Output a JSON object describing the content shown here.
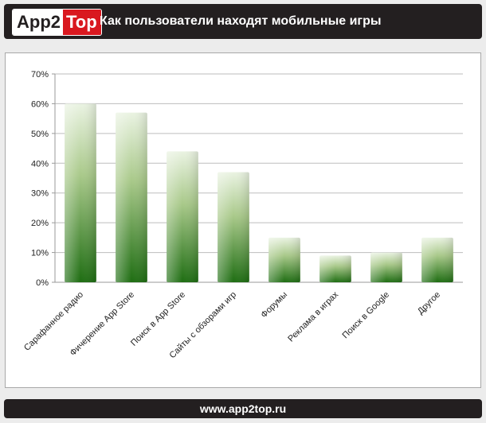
{
  "header": {
    "logo_left": "App2",
    "logo_right": "Top",
    "title": "Как пользователи находят мобильные игры"
  },
  "footer": {
    "url": "www.app2top.ru"
  },
  "colors": {
    "bar_top": "#eaf3e2",
    "bar_bottom": "#1e6d12",
    "header_bg": "#231f20",
    "logo_red": "#d9181f"
  },
  "chart_data": {
    "type": "bar",
    "title": "Как пользователи находят мобильные игры",
    "categories": [
      "Сарафанное радио",
      "Фичерение App Store",
      "Поиск в App Store",
      "Сайты с обзорами игр",
      "Форумы",
      "Реклама в играх",
      "Поиск в Google",
      "Другое"
    ],
    "values": [
      60,
      57,
      44,
      37,
      15,
      9,
      10,
      15
    ],
    "yticks": [
      "0%",
      "10%",
      "20%",
      "30%",
      "40%",
      "50%",
      "60%",
      "70%"
    ],
    "ylim": [
      0,
      70
    ],
    "xlabel": "",
    "ylabel": "",
    "grid": true,
    "legend": "none"
  }
}
